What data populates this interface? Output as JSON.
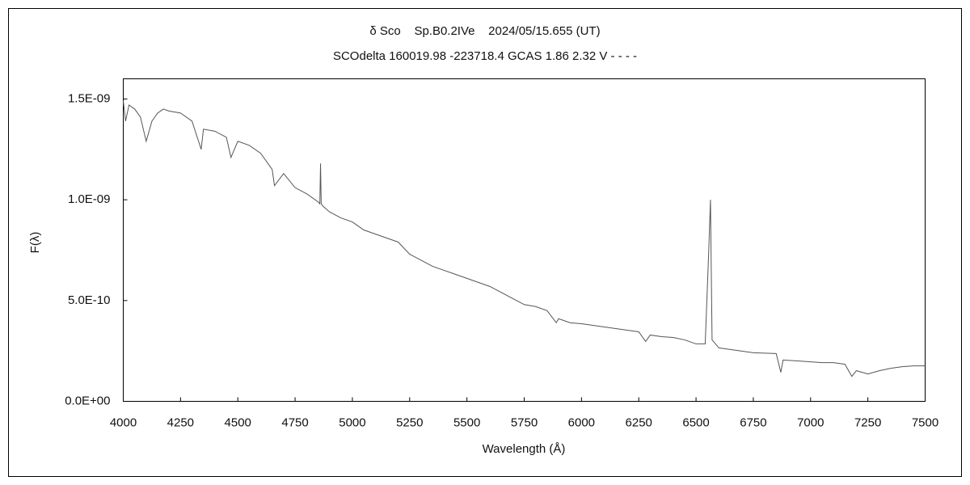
{
  "chart_data": {
    "type": "line",
    "title": "δ Sco    Sp.B0.2IVe    2024/05/15.655 (UT)",
    "subtitle": "SCOdelta 160019.98 -223718.4 GCAS 1.86 2.32 V - - - -",
    "x_label": "Wavelength (Å)",
    "y_label": "F(λ)",
    "xlim": [
      4000,
      7500
    ],
    "xticks": [
      4000,
      4250,
      4500,
      4750,
      5000,
      5250,
      5500,
      5750,
      6000,
      6250,
      6500,
      6750,
      7000,
      7250,
      7500
    ],
    "ylim": [
      0,
      1.6e-09
    ],
    "yticks": [
      {
        "value": 0,
        "label": "0.0E+00"
      },
      {
        "value": 5e-10,
        "label": "5.0E-10"
      },
      {
        "value": 1e-09,
        "label": "1.0E-09"
      },
      {
        "value": 1.5e-09,
        "label": "1.5E-09"
      }
    ],
    "grid": false,
    "x": [
      4000,
      4010,
      4025,
      4050,
      4075,
      4100,
      4125,
      4150,
      4175,
      4200,
      4250,
      4300,
      4340,
      4350,
      4400,
      4450,
      4470,
      4500,
      4550,
      4600,
      4650,
      4660,
      4700,
      4750,
      4800,
      4850,
      4858,
      4861,
      4864,
      4870,
      4900,
      4950,
      5000,
      5050,
      5100,
      5150,
      5200,
      5250,
      5300,
      5350,
      5400,
      5450,
      5500,
      5550,
      5600,
      5650,
      5700,
      5750,
      5800,
      5850,
      5890,
      5900,
      5950,
      6000,
      6050,
      6100,
      6150,
      6200,
      6250,
      6280,
      6300,
      6350,
      6400,
      6450,
      6500,
      6540,
      6555,
      6563,
      6570,
      6600,
      6650,
      6700,
      6750,
      6850,
      6870,
      6880,
      6950,
      7000,
      7050,
      7100,
      7150,
      7180,
      7200,
      7250,
      7300,
      7350,
      7400,
      7450,
      7500
    ],
    "series": [
      {
        "name": "F(λ)",
        "color": "#555555",
        "values": [
          1.49e-09,
          1.39e-09,
          1.47e-09,
          1.45e-09,
          1.41e-09,
          1.29e-09,
          1.39e-09,
          1.43e-09,
          1.45e-09,
          1.44e-09,
          1.43e-09,
          1.39e-09,
          1.25e-09,
          1.35e-09,
          1.34e-09,
          1.31e-09,
          1.21e-09,
          1.29e-09,
          1.27e-09,
          1.23e-09,
          1.15e-09,
          1.07e-09,
          1.13e-09,
          1.06e-09,
          1.03e-09,
          9.9e-10,
          9.8e-10,
          1.18e-09,
          9.8e-10,
          9.7e-10,
          9.4e-10,
          9.1e-10,
          8.9e-10,
          8.5e-10,
          8.3e-10,
          8.1e-10,
          7.9e-10,
          7.3e-10,
          7e-10,
          6.7e-10,
          6.5e-10,
          6.3e-10,
          6.1e-10,
          5.9e-10,
          5.7e-10,
          5.4e-10,
          5.1e-10,
          4.8e-10,
          4.7e-10,
          4.5e-10,
          3.9e-10,
          4.1e-10,
          3.9e-10,
          3.85e-10,
          3.77e-10,
          3.69e-10,
          3.61e-10,
          3.53e-10,
          3.45e-10,
          2.97e-10,
          3.29e-10,
          3.21e-10,
          3.17e-10,
          3.05e-10,
          2.85e-10,
          2.85e-10,
          7.3e-10,
          1e-09,
          3.05e-10,
          2.65e-10,
          2.57e-10,
          2.49e-10,
          2.41e-10,
          2.37e-10,
          1.44e-10,
          2.05e-10,
          2e-10,
          1.96e-10,
          1.92e-10,
          1.92e-10,
          1.84e-10,
          1.24e-10,
          1.52e-10,
          1.36e-10,
          1.52e-10,
          1.64e-10,
          1.72e-10,
          1.76e-10,
          1.76e-10
        ]
      }
    ]
  }
}
